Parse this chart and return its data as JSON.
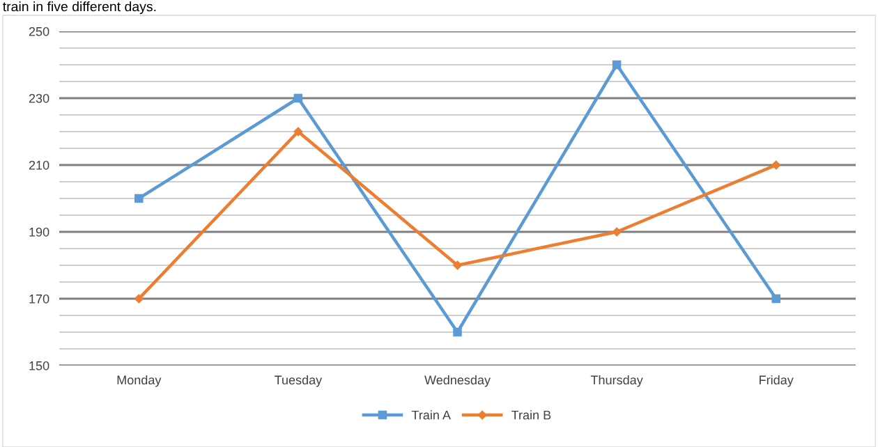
{
  "chart_data": {
    "type": "line",
    "annotations": [
      "train in five different days."
    ],
    "categories": [
      "Monday",
      "Tuesday",
      "Wednesday",
      "Thursday",
      "Friday"
    ],
    "series": [
      {
        "name": "Train A",
        "color": "#5b9bd5",
        "values": [
          200,
          230,
          160,
          240,
          170
        ],
        "marker": "square"
      },
      {
        "name": "Train B",
        "color": "#ed7d31",
        "values": [
          170,
          220,
          180,
          190,
          210
        ],
        "marker": "diamond"
      }
    ],
    "ylim": [
      150,
      250
    ],
    "yticks": [
      150,
      {
        "value": 155,
        "label": null
      },
      {
        "value": 160,
        "label": null
      },
      {
        "value": 165,
        "label": null
      },
      170,
      {
        "value": 175,
        "label": null
      },
      {
        "value": 180,
        "label": null
      },
      {
        "value": 185,
        "label": null
      },
      190,
      {
        "value": 195,
        "label": null
      },
      {
        "value": 200,
        "label": null
      },
      {
        "value": 205,
        "label": null
      },
      210,
      {
        "value": 215,
        "label": null
      },
      {
        "value": 220,
        "label": null
      },
      {
        "value": 225,
        "label": null
      },
      230,
      {
        "value": 235,
        "label": null
      },
      {
        "value": 240,
        "label": null
      },
      {
        "value": 245,
        "label": null
      },
      250
    ],
    "grid": "y",
    "legend": "bottom",
    "line_style": "solid"
  }
}
